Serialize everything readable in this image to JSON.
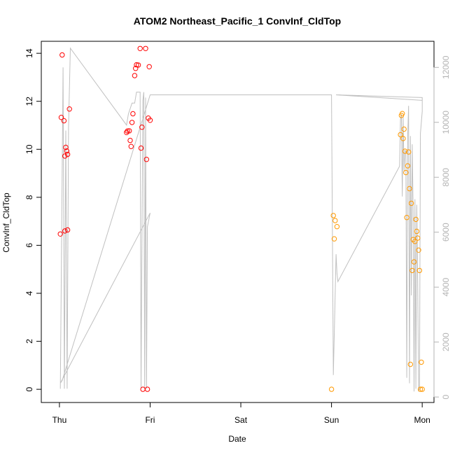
{
  "chart_data": {
    "type": "scatter",
    "title": "ATOM2 Northeast_Pacific_1 ConvInf_CldTop",
    "xlabel": "Date",
    "ylabel": "ConvInf_CldTop",
    "x_axis": {
      "ticks": [
        0,
        1,
        2,
        3,
        4
      ],
      "tick_labels": [
        "Thu",
        "Fri",
        "Sat",
        "Sun",
        "Mon"
      ],
      "range": [
        -0.2,
        4.13
      ]
    },
    "y_axis": {
      "ticks": [
        0,
        2,
        4,
        6,
        8,
        10,
        12,
        14
      ],
      "tick_labels": [
        "0",
        "2",
        "4",
        "6",
        "8",
        "10",
        "12",
        "14"
      ],
      "range": [
        -0.55,
        14.5
      ]
    },
    "y2_axis": {
      "ticks": [
        0,
        2000,
        4000,
        6000,
        8000,
        10000,
        12000
      ],
      "tick_labels": [
        "0",
        "2000",
        "4000",
        "6000",
        "8000",
        "10000",
        "12000"
      ],
      "range": [
        -200,
        12950
      ],
      "color": "#b4b4b4"
    },
    "grid": false,
    "series": [
      {
        "color": "#ff0000",
        "axis": "left",
        "points": [
          {
            "x": 0.01,
            "y": 6.47
          },
          {
            "x": 0.02,
            "y": 11.33
          },
          {
            "x": 0.03,
            "y": 13.93
          },
          {
            "x": 0.05,
            "y": 11.19
          },
          {
            "x": 0.06,
            "y": 6.6
          },
          {
            "x": 0.06,
            "y": 9.72
          },
          {
            "x": 0.07,
            "y": 10.08
          },
          {
            "x": 0.08,
            "y": 9.93
          },
          {
            "x": 0.09,
            "y": 6.64
          },
          {
            "x": 0.09,
            "y": 9.79
          },
          {
            "x": 0.11,
            "y": 11.68
          },
          {
            "x": 0.74,
            "y": 10.7
          },
          {
            "x": 0.75,
            "y": 10.76
          },
          {
            "x": 0.77,
            "y": 10.77
          },
          {
            "x": 0.78,
            "y": 10.37
          },
          {
            "x": 0.79,
            "y": 10.12
          },
          {
            "x": 0.8,
            "y": 11.12
          },
          {
            "x": 0.81,
            "y": 11.48
          },
          {
            "x": 0.83,
            "y": 13.07
          },
          {
            "x": 0.84,
            "y": 13.37
          },
          {
            "x": 0.85,
            "y": 13.52
          },
          {
            "x": 0.87,
            "y": 13.51
          },
          {
            "x": 0.89,
            "y": 14.2
          },
          {
            "x": 0.9,
            "y": 10.05
          },
          {
            "x": 0.91,
            "y": 10.92
          },
          {
            "x": 0.92,
            "y": 0.0
          },
          {
            "x": 0.95,
            "y": 14.2
          },
          {
            "x": 0.96,
            "y": 9.58
          },
          {
            "x": 0.97,
            "y": 0.0
          },
          {
            "x": 0.98,
            "y": 11.3
          },
          {
            "x": 0.99,
            "y": 13.44
          },
          {
            "x": 1.0,
            "y": 11.21
          }
        ]
      },
      {
        "color": "#ff9900",
        "axis": "left",
        "points": [
          {
            "x": 3.0,
            "y": 0.0
          },
          {
            "x": 3.02,
            "y": 7.24
          },
          {
            "x": 3.03,
            "y": 6.27
          },
          {
            "x": 3.04,
            "y": 7.03
          },
          {
            "x": 3.06,
            "y": 6.78
          },
          {
            "x": 3.76,
            "y": 10.61
          },
          {
            "x": 3.77,
            "y": 11.41
          },
          {
            "x": 3.78,
            "y": 11.49
          },
          {
            "x": 3.79,
            "y": 10.45
          },
          {
            "x": 3.8,
            "y": 10.84
          },
          {
            "x": 3.81,
            "y": 9.92
          },
          {
            "x": 3.82,
            "y": 9.03
          },
          {
            "x": 3.83,
            "y": 7.16
          },
          {
            "x": 3.84,
            "y": 9.31
          },
          {
            "x": 3.85,
            "y": 9.89
          },
          {
            "x": 3.86,
            "y": 8.36
          },
          {
            "x": 3.87,
            "y": 1.04
          },
          {
            "x": 3.88,
            "y": 7.75
          },
          {
            "x": 3.89,
            "y": 4.95
          },
          {
            "x": 3.9,
            "y": 6.24
          },
          {
            "x": 3.91,
            "y": 5.31
          },
          {
            "x": 3.92,
            "y": 6.16
          },
          {
            "x": 3.93,
            "y": 7.08
          },
          {
            "x": 3.94,
            "y": 6.58
          },
          {
            "x": 3.95,
            "y": 6.3
          },
          {
            "x": 3.96,
            "y": 5.8
          },
          {
            "x": 3.97,
            "y": 4.95
          },
          {
            "x": 3.98,
            "y": 0.0
          },
          {
            "x": 3.99,
            "y": 1.13
          },
          {
            "x": 4.0,
            "y": 0.0
          }
        ]
      },
      {
        "type": "line",
        "color": "#c0c0c0",
        "axis": "right",
        "points": [
          {
            "x": 0.01,
            "y": 300
          },
          {
            "x": 0.04,
            "y": 12000
          },
          {
            "x": 0.055,
            "y": 300
          },
          {
            "x": 0.07,
            "y": 9700
          },
          {
            "x": 0.085,
            "y": 300
          },
          {
            "x": 0.1,
            "y": 9800
          },
          {
            "x": 0.12,
            "y": 12700
          },
          {
            "x": 0.74,
            "y": 9900
          },
          {
            "x": 0.76,
            "y": 10300
          },
          {
            "x": 0.78,
            "y": 10500
          },
          {
            "x": 0.8,
            "y": 10700
          },
          {
            "x": 0.83,
            "y": 10700
          },
          {
            "x": 0.85,
            "y": 11100
          },
          {
            "x": 0.89,
            "y": 11100
          },
          {
            "x": 0.9,
            "y": 300
          },
          {
            "x": 0.92,
            "y": 10800
          },
          {
            "x": 0.93,
            "y": 11100
          },
          {
            "x": 0.94,
            "y": 300
          },
          {
            "x": 0.95,
            "y": 10900
          },
          {
            "x": 0.96,
            "y": 300
          },
          {
            "x": 0.97,
            "y": 6200
          },
          {
            "x": 1.0,
            "y": 6700
          },
          {
            "x": 0.01,
            "y": 500
          },
          {
            "x": 0.03,
            "y": 600
          },
          {
            "x": 1.0,
            "y": 11000
          },
          {
            "x": 3.0,
            "y": 11000
          },
          {
            "x": 3.02,
            "y": 800
          },
          {
            "x": 3.05,
            "y": 5200
          },
          {
            "x": 3.06,
            "y": 4500
          },
          {
            "x": 3.07,
            "y": 4200
          },
          {
            "x": 3.75,
            "y": 8400
          },
          {
            "x": 3.76,
            "y": 10100
          },
          {
            "x": 3.77,
            "y": 10300
          },
          {
            "x": 3.78,
            "y": 7300
          },
          {
            "x": 3.79,
            "y": 10200
          },
          {
            "x": 3.8,
            "y": 8200
          },
          {
            "x": 3.81,
            "y": 9000
          },
          {
            "x": 3.82,
            "y": 8900
          },
          {
            "x": 3.83,
            "y": 700
          },
          {
            "x": 3.84,
            "y": 9500
          },
          {
            "x": 3.85,
            "y": 10600
          },
          {
            "x": 3.86,
            "y": 500
          },
          {
            "x": 3.87,
            "y": 9500
          },
          {
            "x": 3.88,
            "y": 3700
          },
          {
            "x": 3.89,
            "y": 9200
          },
          {
            "x": 3.9,
            "y": 6800
          },
          {
            "x": 3.91,
            "y": 200
          },
          {
            "x": 3.92,
            "y": 7200
          },
          {
            "x": 3.93,
            "y": 300
          },
          {
            "x": 3.94,
            "y": 7000
          },
          {
            "x": 3.95,
            "y": 4200
          },
          {
            "x": 3.96,
            "y": 200
          },
          {
            "x": 3.97,
            "y": 300
          },
          {
            "x": 3.98,
            "y": 9600
          },
          {
            "x": 3.99,
            "y": 10000
          },
          {
            "x": 4.0,
            "y": 10400
          },
          {
            "x": 4.0,
            "y": 10900
          },
          {
            "x": 3.05,
            "y": 11000
          },
          {
            "x": 4.0,
            "y": 10800
          }
        ]
      }
    ]
  }
}
